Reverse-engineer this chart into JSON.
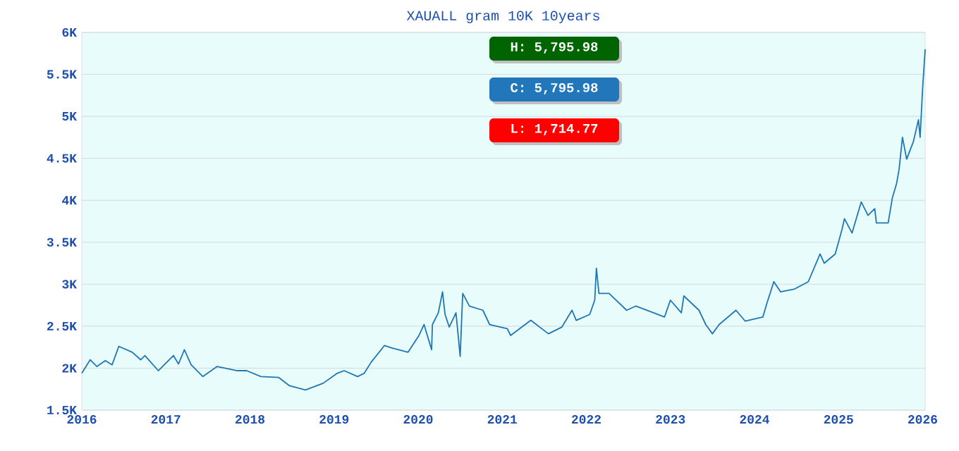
{
  "chart_data": {
    "type": "line",
    "title": "XAUALL gram 10K 10years",
    "x": [
      2016.0,
      2016.1,
      2016.18,
      2016.28,
      2016.36,
      2016.44,
      2016.6,
      2016.7,
      2016.75,
      2016.91,
      2017.09,
      2017.15,
      2017.22,
      2017.3,
      2017.44,
      2017.61,
      2017.85,
      2017.96,
      2018.13,
      2018.34,
      2018.47,
      2018.66,
      2018.87,
      2019.04,
      2019.12,
      2019.28,
      2019.36,
      2019.44,
      2019.6,
      2019.69,
      2019.88,
      2020.01,
      2020.07,
      2020.16,
      2020.17,
      2020.24,
      2020.29,
      2020.32,
      2020.37,
      2020.45,
      2020.5,
      2020.53,
      2020.61,
      2020.77,
      2020.85,
      2021.06,
      2021.1,
      2021.34,
      2021.55,
      2021.71,
      2021.83,
      2021.88,
      2022.04,
      2022.1,
      2022.12,
      2022.15,
      2022.27,
      2022.48,
      2022.59,
      2022.8,
      2022.93,
      2023.0,
      2023.13,
      2023.16,
      2023.34,
      2023.42,
      2023.5,
      2023.58,
      2023.78,
      2023.89,
      2024.1,
      2024.15,
      2024.23,
      2024.31,
      2024.47,
      2024.64,
      2024.78,
      2024.83,
      2024.96,
      2025.04,
      2025.07,
      2025.16,
      2025.27,
      2025.35,
      2025.43,
      2025.45,
      2025.59,
      2025.64,
      2025.69,
      2025.72,
      2025.76,
      2025.81,
      2025.89,
      2025.95,
      2025.97,
      2026.0,
      2026.03
    ],
    "values": [
      1940,
      2100,
      2020,
      2090,
      2040,
      2260,
      2190,
      2100,
      2150,
      1970,
      2150,
      2050,
      2220,
      2040,
      1900,
      2020,
      1970,
      1970,
      1900,
      1890,
      1790,
      1740,
      1820,
      1940,
      1970,
      1900,
      1940,
      2070,
      2270,
      2240,
      2190,
      2390,
      2520,
      2220,
      2520,
      2660,
      2910,
      2640,
      2490,
      2660,
      2140,
      2890,
      2740,
      2690,
      2520,
      2470,
      2390,
      2570,
      2410,
      2490,
      2690,
      2570,
      2640,
      2810,
      3190,
      2890,
      2890,
      2690,
      2740,
      2660,
      2610,
      2810,
      2660,
      2860,
      2690,
      2520,
      2410,
      2520,
      2690,
      2560,
      2610,
      2780,
      3030,
      2910,
      2940,
      3030,
      3360,
      3250,
      3360,
      3650,
      3780,
      3610,
      3980,
      3820,
      3900,
      3730,
      3730,
      4030,
      4200,
      4370,
      4750,
      4490,
      4700,
      4960,
      4750,
      5340,
      5800
    ],
    "color": "#1f77b4",
    "xlim": [
      2016,
      2026.03
    ],
    "ylim": [
      1500,
      6000
    ],
    "xticks": [
      2016,
      2017,
      2018,
      2019,
      2020,
      2021,
      2022,
      2023,
      2024,
      2025,
      2026
    ],
    "yticks": [
      {
        "value": 1500,
        "label": "1.5K"
      },
      {
        "value": 2000,
        "label": "2K"
      },
      {
        "value": 2500,
        "label": "2.5K"
      },
      {
        "value": 3000,
        "label": "3K"
      },
      {
        "value": 3500,
        "label": "3.5K"
      },
      {
        "value": 4000,
        "label": "4K"
      },
      {
        "value": 4500,
        "label": "4.5K"
      },
      {
        "value": 5000,
        "label": "5K"
      },
      {
        "value": 5500,
        "label": "5.5K"
      },
      {
        "value": 6000,
        "label": "6K"
      }
    ],
    "grid": "y",
    "annotations": [
      "H: 5,795.98",
      "C: 5,795.98",
      "L: 1,714.77"
    ]
  }
}
